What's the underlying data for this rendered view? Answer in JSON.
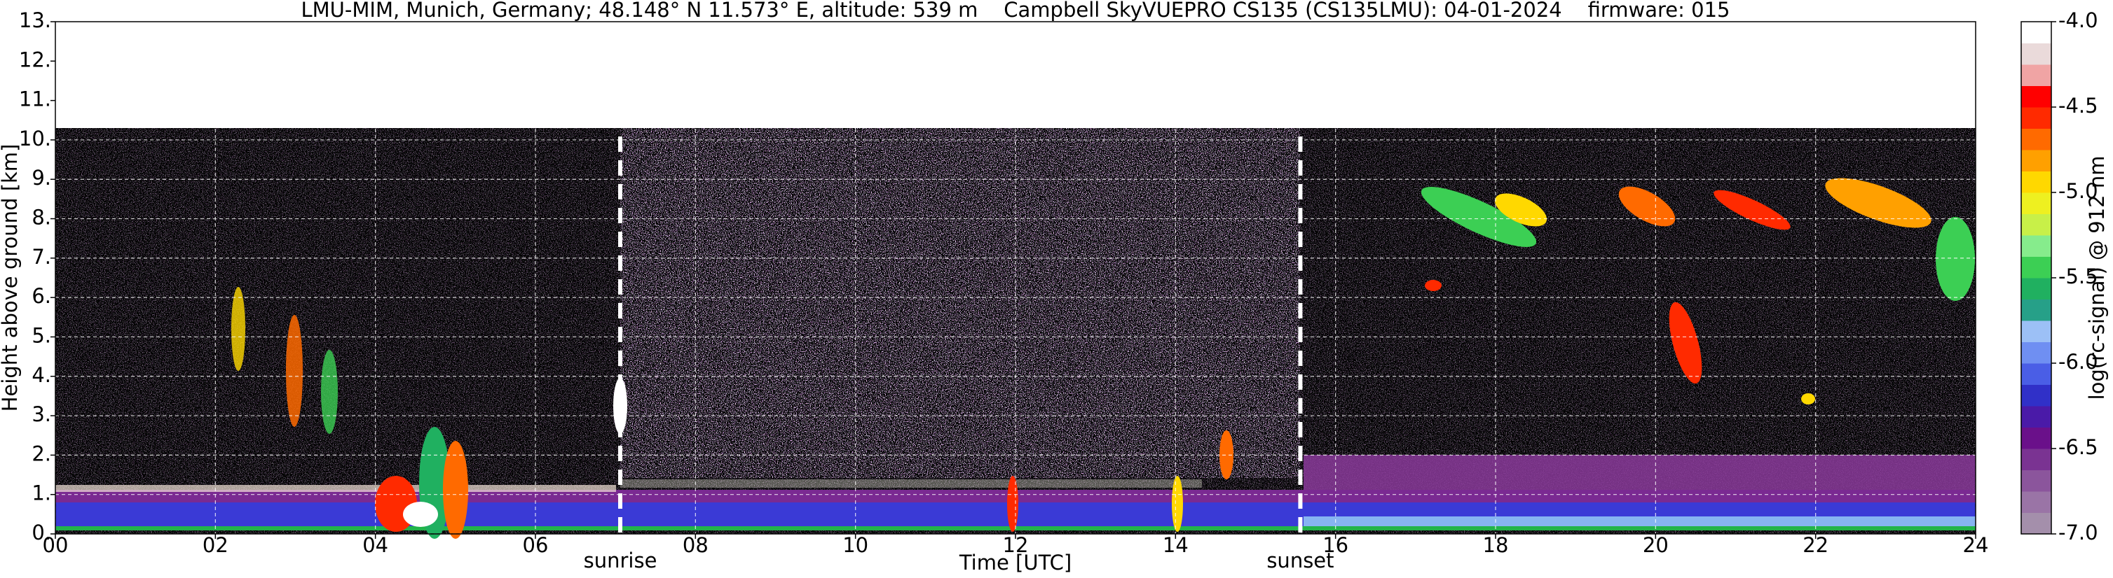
{
  "chart_data": {
    "type": "heatmap",
    "title": "LMU-MIM, Munich, Germany; 48.148° N 11.573° E, altitude: 539 m    Campbell SkyVUEPRO CS135 (CS135LMU): 04-01-2024    firmware: 015",
    "xlabel": "Time [UTC]",
    "ylabel": "Height above ground [km]",
    "xlim": [
      0,
      24
    ],
    "ylim": [
      0,
      13
    ],
    "xticks": [
      {
        "value": 0,
        "label": "00"
      },
      {
        "value": 2,
        "label": "02"
      },
      {
        "value": 4,
        "label": "04"
      },
      {
        "value": 6,
        "label": "06"
      },
      {
        "value": 8,
        "label": "08"
      },
      {
        "value": 10,
        "label": "10"
      },
      {
        "value": 12,
        "label": "12"
      },
      {
        "value": 14,
        "label": "14"
      },
      {
        "value": 16,
        "label": "16"
      },
      {
        "value": 18,
        "label": "18"
      },
      {
        "value": 20,
        "label": "20"
      },
      {
        "value": 22,
        "label": "22"
      },
      {
        "value": 24,
        "label": "24"
      }
    ],
    "yticks": [
      {
        "value": 0,
        "label": "0."
      },
      {
        "value": 1,
        "label": "1."
      },
      {
        "value": 2,
        "label": "2."
      },
      {
        "value": 3,
        "label": "3."
      },
      {
        "value": 4,
        "label": "4."
      },
      {
        "value": 5,
        "label": "5."
      },
      {
        "value": 6,
        "label": "6."
      },
      {
        "value": 7,
        "label": "7."
      },
      {
        "value": 8,
        "label": "8."
      },
      {
        "value": 9,
        "label": "9."
      },
      {
        "value": 10,
        "label": "10."
      },
      {
        "value": 11,
        "label": "11."
      },
      {
        "value": 12,
        "label": "12."
      },
      {
        "value": 13,
        "label": "13."
      }
    ],
    "grid": true,
    "annotations": [
      {
        "text": "sunrise",
        "x": 7.06
      },
      {
        "text": "sunset",
        "x": 15.56
      }
    ],
    "colorbar": {
      "label": "log(rc-signal) @ 912 nm",
      "lim": [
        -7,
        -4
      ],
      "ticks": [
        {
          "value": -7,
          "label": "-7.0"
        },
        {
          "value": -6.5,
          "label": "-6.5"
        },
        {
          "value": -6,
          "label": "-6.0"
        },
        {
          "value": -5.5,
          "label": "-5.5"
        },
        {
          "value": -5,
          "label": "-5.0"
        },
        {
          "value": -4.5,
          "label": "-4.5"
        },
        {
          "value": -4,
          "label": "-4.0"
        }
      ],
      "colors": [
        "#a48fab",
        "#9a74a6",
        "#8b559c",
        "#7a3392",
        "#6a108a",
        "#4a1aa8",
        "#3030c8",
        "#4a5ee6",
        "#6f8ff2",
        "#9cc0f6",
        "#26a088",
        "#20b060",
        "#3ccf54",
        "#86ec8c",
        "#c8f048",
        "#eef020",
        "#ffd800",
        "#ffa000",
        "#ff6a00",
        "#ff2a00",
        "#ff0000",
        "#f0a4a4",
        "#eadada",
        "#ffffff"
      ]
    }
  }
}
